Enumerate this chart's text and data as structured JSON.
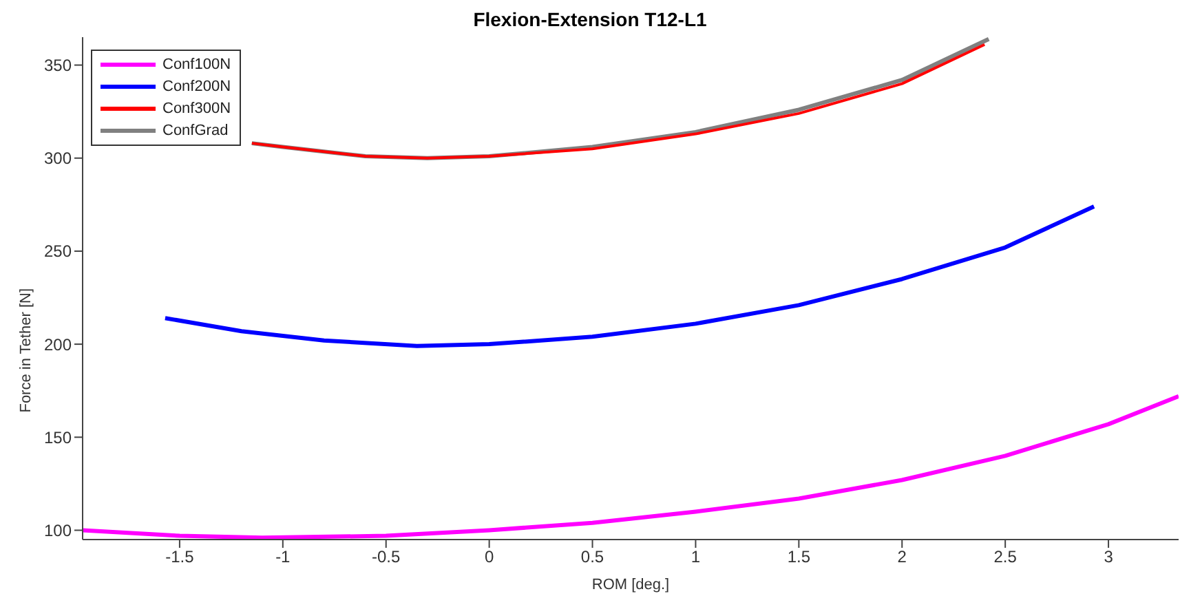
{
  "chart_data": {
    "type": "line",
    "title": "Flexion-Extension T12-L1",
    "xlabel": "ROM [deg.]",
    "ylabel": "Force in Tether [N]",
    "xlim": [
      -1.97,
      3.34
    ],
    "ylim": [
      95,
      365
    ],
    "xticks": [
      -1.5,
      -1,
      -0.5,
      0,
      0.5,
      1,
      1.5,
      2,
      2.5,
      3
    ],
    "yticks": [
      100,
      150,
      200,
      250,
      300,
      350
    ],
    "grid": false,
    "legend": "top left",
    "marker": "none",
    "line_style": "solid",
    "series": [
      {
        "name": "Conf100N",
        "color": "#ff00ff",
        "x": [
          -1.97,
          -1.5,
          -1.1,
          -0.5,
          0,
          0.5,
          1,
          1.5,
          2,
          2.5,
          3,
          3.34
        ],
        "values": [
          100,
          97,
          96,
          97,
          100,
          104,
          110,
          117,
          127,
          140,
          157,
          172
        ]
      },
      {
        "name": "Conf200N",
        "color": "#0000ff",
        "x": [
          -1.57,
          -1.2,
          -0.8,
          -0.35,
          0,
          0.5,
          1,
          1.5,
          2,
          2.5,
          2.93
        ],
        "values": [
          214,
          207,
          202,
          199,
          200,
          204,
          211,
          221,
          235,
          252,
          274
        ]
      },
      {
        "name": "Conf300N",
        "color": "#ff0000",
        "x": [
          -1.15,
          -1,
          -0.6,
          -0.3,
          0,
          0.5,
          1,
          1.5,
          2,
          2.4
        ],
        "values": [
          308,
          306,
          301,
          300,
          301,
          305,
          313,
          324,
          340,
          361
        ]
      },
      {
        "name": "ConfGrad",
        "color": "#808080",
        "x": [
          -1.15,
          -1,
          -0.6,
          -0.3,
          0,
          0.5,
          1,
          1.5,
          2,
          2.42
        ],
        "values": [
          308,
          306,
          301,
          300,
          301,
          306,
          314,
          326,
          342,
          364
        ]
      }
    ]
  }
}
